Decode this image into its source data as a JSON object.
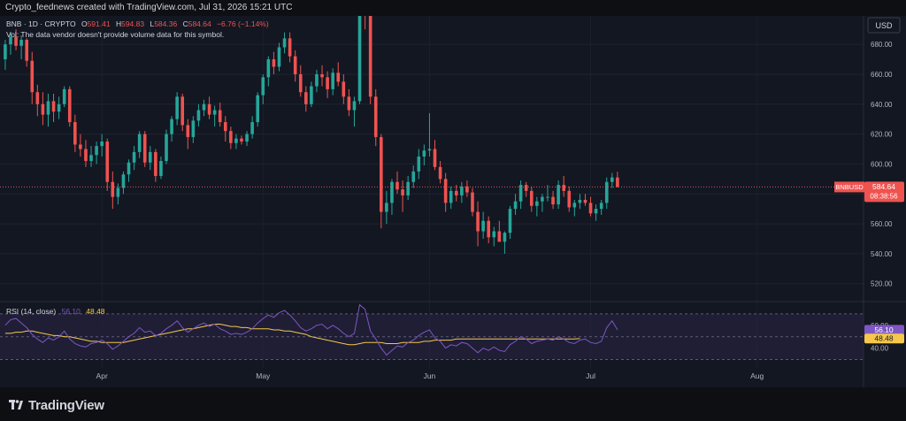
{
  "header": {
    "text": "Crypto_feednews created with TradingView.com, Jul 31, 2026 15:21 UTC"
  },
  "legend": {
    "symbol": "BNB · 1D · CRYPTO",
    "o_label": "O",
    "o": "591.41",
    "h_label": "H",
    "h": "594.83",
    "l_label": "L",
    "l": "584.36",
    "c_label": "C",
    "c": "584.64",
    "change": "−6.76 (−1.14%)",
    "vol_note": "Vol: The data vendor doesn't provide volume data for this symbol."
  },
  "currency": "USD",
  "price_label": {
    "symbol": "BNBUSD",
    "price": "584.64",
    "countdown": "08:38:56"
  },
  "rsi_legend": {
    "name": "RSI (14, close)",
    "rsi": "56.10",
    "ma": "48.48"
  },
  "footer": {
    "brand": "TradingView"
  },
  "colors": {
    "up": "#26a69a",
    "down": "#ef5350",
    "rsi": "#7e57c2",
    "rsi_ma": "#f5c84c",
    "rsi_band": "#2a2445",
    "background": "#131722"
  },
  "chart_data": {
    "type": "candlestick",
    "title": "BNB · 1D · CRYPTO",
    "price_axis": {
      "ticks": [
        520,
        540,
        560,
        580,
        600,
        620,
        640,
        660,
        680
      ],
      "labels": [
        "520.00",
        "540.00",
        "560.00",
        "580.00",
        "600.00",
        "620.00",
        "640.00",
        "660.00",
        "680.00"
      ],
      "ylim": [
        508,
        699
      ]
    },
    "x_axis": {
      "labels": [
        "Apr",
        "May",
        "Jun",
        "Jul",
        "Aug"
      ],
      "label_days": [
        31,
        61,
        92,
        122,
        153
      ]
    },
    "candles_start_day": 13,
    "candles": [
      [
        13,
        670,
        683,
        663,
        680
      ],
      [
        14,
        680,
        688,
        673,
        685
      ],
      [
        15,
        685,
        690,
        676,
        679
      ],
      [
        16,
        679,
        686,
        670,
        683
      ],
      [
        17,
        683,
        684,
        665,
        669
      ],
      [
        18,
        669,
        675,
        640,
        648
      ],
      [
        19,
        648,
        653,
        632,
        640
      ],
      [
        20,
        640,
        648,
        626,
        633
      ],
      [
        21,
        633,
        647,
        625,
        642
      ],
      [
        22,
        642,
        647,
        628,
        635
      ],
      [
        23,
        635,
        645,
        630,
        640
      ],
      [
        24,
        640,
        652,
        638,
        650
      ],
      [
        25,
        650,
        652,
        625,
        628
      ],
      [
        26,
        628,
        633,
        608,
        613
      ],
      [
        27,
        613,
        620,
        605,
        610
      ],
      [
        28,
        610,
        616,
        598,
        602
      ],
      [
        29,
        602,
        612,
        598,
        606
      ],
      [
        30,
        606,
        615,
        600,
        612
      ],
      [
        31,
        612,
        620,
        605,
        615
      ],
      [
        32,
        615,
        617,
        582,
        588
      ],
      [
        33,
        588,
        595,
        570,
        578
      ],
      [
        34,
        578,
        587,
        573,
        584
      ],
      [
        35,
        584,
        595,
        580,
        593
      ],
      [
        36,
        593,
        603,
        588,
        601
      ],
      [
        37,
        601,
        612,
        596,
        608
      ],
      [
        38,
        608,
        622,
        604,
        620
      ],
      [
        39,
        620,
        622,
        598,
        601
      ],
      [
        40,
        601,
        612,
        596,
        608
      ],
      [
        41,
        608,
        610,
        588,
        592
      ],
      [
        42,
        592,
        605,
        590,
        602
      ],
      [
        43,
        602,
        623,
        600,
        620
      ],
      [
        44,
        620,
        632,
        615,
        630
      ],
      [
        45,
        630,
        648,
        626,
        645
      ],
      [
        46,
        645,
        647,
        622,
        626
      ],
      [
        47,
        626,
        630,
        610,
        618
      ],
      [
        48,
        618,
        632,
        614,
        629
      ],
      [
        49,
        629,
        640,
        625,
        636
      ],
      [
        50,
        636,
        643,
        632,
        640
      ],
      [
        51,
        640,
        645,
        630,
        633
      ],
      [
        52,
        633,
        639,
        625,
        636
      ],
      [
        53,
        636,
        641,
        625,
        628
      ],
      [
        54,
        628,
        632,
        615,
        622
      ],
      [
        55,
        622,
        625,
        610,
        614
      ],
      [
        56,
        614,
        620,
        610,
        617
      ],
      [
        57,
        617,
        619,
        613,
        615
      ],
      [
        58,
        615,
        622,
        612,
        620
      ],
      [
        59,
        620,
        632,
        617,
        628
      ],
      [
        60,
        628,
        648,
        625,
        646
      ],
      [
        61,
        646,
        660,
        640,
        658
      ],
      [
        62,
        658,
        672,
        652,
        670
      ],
      [
        63,
        670,
        675,
        660,
        665
      ],
      [
        64,
        665,
        681,
        662,
        678
      ],
      [
        65,
        678,
        688,
        674,
        684
      ],
      [
        66,
        684,
        688,
        668,
        672
      ],
      [
        67,
        672,
        676,
        655,
        660
      ],
      [
        68,
        660,
        666,
        645,
        648
      ],
      [
        69,
        648,
        652,
        635,
        640
      ],
      [
        70,
        640,
        655,
        638,
        652
      ],
      [
        71,
        652,
        663,
        648,
        660
      ],
      [
        72,
        660,
        666,
        652,
        658
      ],
      [
        73,
        658,
        662,
        644,
        650
      ],
      [
        74,
        650,
        664,
        646,
        661
      ],
      [
        75,
        661,
        668,
        652,
        655
      ],
      [
        76,
        655,
        660,
        640,
        645
      ],
      [
        77,
        645,
        650,
        632,
        636
      ],
      [
        78,
        636,
        645,
        625,
        642
      ],
      [
        79,
        642,
        716,
        640,
        712
      ],
      [
        80,
        712,
        738,
        690,
        700
      ],
      [
        81,
        700,
        705,
        640,
        645
      ],
      [
        82,
        645,
        650,
        612,
        618
      ],
      [
        83,
        618,
        620,
        557,
        568
      ],
      [
        84,
        568,
        582,
        560,
        574
      ],
      [
        85,
        574,
        590,
        566,
        588
      ],
      [
        86,
        588,
        595,
        580,
        583
      ],
      [
        87,
        583,
        589,
        568,
        579
      ],
      [
        88,
        579,
        592,
        576,
        588
      ],
      [
        89,
        588,
        599,
        584,
        595
      ],
      [
        90,
        595,
        610,
        590,
        605
      ],
      [
        91,
        605,
        613,
        599,
        609
      ],
      [
        92,
        609,
        634,
        605,
        610
      ],
      [
        93,
        610,
        616,
        596,
        598
      ],
      [
        94,
        598,
        602,
        587,
        590
      ],
      [
        95,
        590,
        594,
        568,
        574
      ],
      [
        96,
        574,
        585,
        570,
        582
      ],
      [
        97,
        582,
        586,
        575,
        579
      ],
      [
        98,
        579,
        588,
        574,
        585
      ],
      [
        99,
        585,
        589,
        578,
        581
      ],
      [
        100,
        581,
        584,
        565,
        568
      ],
      [
        101,
        568,
        575,
        545,
        555
      ],
      [
        102,
        555,
        568,
        550,
        562
      ],
      [
        103,
        562,
        565,
        547,
        551
      ],
      [
        104,
        551,
        558,
        545,
        555
      ],
      [
        105,
        555,
        562,
        548,
        548
      ],
      [
        106,
        548,
        555,
        540,
        554
      ],
      [
        107,
        554,
        572,
        550,
        570
      ],
      [
        108,
        570,
        580,
        566,
        575
      ],
      [
        109,
        575,
        589,
        570,
        586
      ],
      [
        110,
        586,
        588,
        578,
        582
      ],
      [
        111,
        582,
        585,
        568,
        572
      ],
      [
        112,
        572,
        578,
        565,
        575
      ],
      [
        113,
        575,
        580,
        568,
        578
      ],
      [
        114,
        578,
        586,
        575,
        578
      ],
      [
        115,
        578,
        582,
        570,
        573
      ],
      [
        116,
        573,
        589,
        570,
        586
      ],
      [
        117,
        586,
        592,
        578,
        582
      ],
      [
        118,
        582,
        585,
        568,
        571
      ],
      [
        119,
        571,
        576,
        565,
        574
      ],
      [
        120,
        574,
        580,
        570,
        576
      ],
      [
        121,
        576,
        580,
        572,
        574
      ],
      [
        122,
        574,
        578,
        565,
        567
      ],
      [
        123,
        567,
        573,
        562,
        570
      ],
      [
        124,
        570,
        576,
        566,
        574
      ],
      [
        125,
        574,
        591,
        570,
        588
      ],
      [
        126,
        588,
        594,
        584,
        591
      ],
      [
        127,
        591,
        594.83,
        584.36,
        584.64
      ]
    ],
    "rsi_axis": {
      "ticks": [
        40,
        60
      ],
      "labels": [
        "40.00",
        "60.00"
      ],
      "ylim": [
        25,
        80
      ],
      "band": [
        30,
        70
      ]
    },
    "rsi_series": [
      {
        "name": "RSI",
        "values": [
          60,
          65,
          66,
          62,
          58,
          52,
          48,
          45,
          49,
          47,
          50,
          55,
          48,
          44,
          42,
          41,
          44,
          45,
          47,
          44,
          39,
          42,
          46,
          50,
          53,
          58,
          54,
          55,
          51,
          53,
          57,
          60,
          64,
          58,
          54,
          57,
          60,
          62,
          59,
          61,
          57,
          55,
          52,
          53,
          52,
          54,
          57,
          62,
          66,
          69,
          67,
          71,
          73,
          69,
          64,
          58,
          55,
          57,
          60,
          61,
          57,
          60,
          57,
          53,
          50,
          53,
          78,
          74,
          55,
          48,
          40,
          34,
          38,
          42,
          41,
          45,
          47,
          51,
          54,
          56,
          49,
          46,
          40,
          43,
          42,
          45,
          44,
          40,
          36,
          40,
          38,
          41,
          38,
          37,
          43,
          46,
          50,
          48,
          44,
          46,
          47,
          48,
          47,
          50,
          48,
          45,
          44,
          47,
          48,
          45,
          44,
          46,
          58,
          64,
          56.1
        ]
      },
      {
        "name": "RSI-based MA",
        "values": [
          53,
          53,
          54,
          54,
          55,
          55,
          54,
          53,
          52,
          51,
          51,
          50,
          50,
          49,
          48,
          47,
          46,
          46,
          45,
          45,
          45,
          45,
          45,
          46,
          47,
          48,
          49,
          50,
          51,
          52,
          53,
          54,
          55,
          56,
          57,
          57,
          58,
          59,
          60,
          61,
          61,
          60,
          59,
          59,
          58,
          58,
          57,
          57,
          57,
          57,
          56,
          56,
          55,
          55,
          54,
          53,
          52,
          50,
          49,
          48,
          47,
          46,
          45,
          44,
          43,
          43,
          44,
          45,
          45,
          45,
          45,
          44,
          44,
          44,
          45,
          45,
          45,
          45,
          46,
          46,
          47,
          47,
          47,
          47,
          48,
          48,
          48,
          48,
          48,
          48,
          48,
          48,
          48,
          48,
          48,
          48,
          48,
          48,
          48,
          48,
          48,
          48,
          48,
          48,
          48,
          48,
          48,
          48.48
        ]
      }
    ]
  }
}
